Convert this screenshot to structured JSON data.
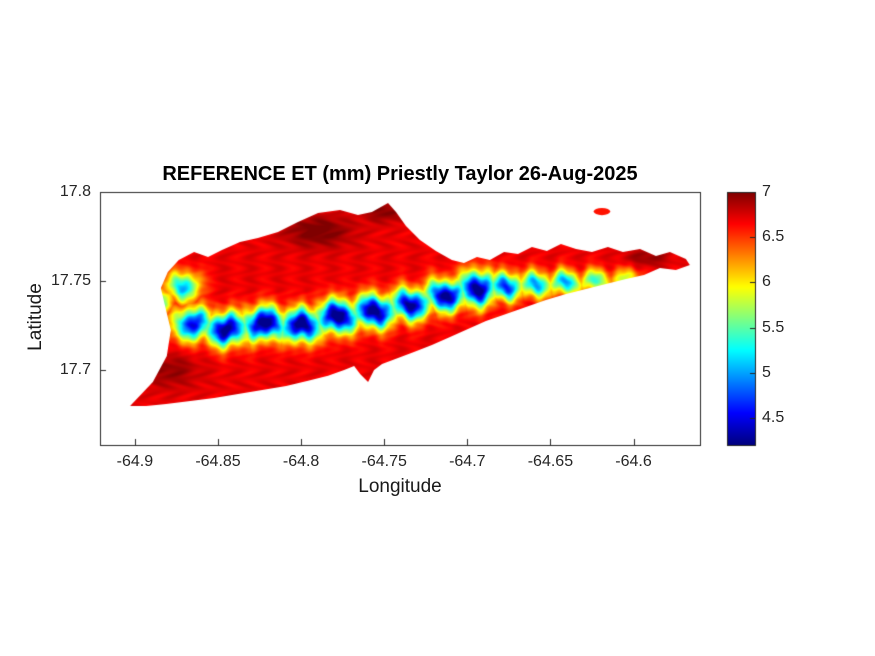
{
  "colors": {
    "background": "#ffffff",
    "axes": "#262626",
    "title_text": "#000000",
    "label_text": "#1a1a1a"
  },
  "chart_data": {
    "type": "heatmap",
    "title": "REFERENCE ET (mm) Priestly Taylor 26-Aug-2025",
    "xlabel": "Longitude",
    "ylabel": "Latitude",
    "date": "26-Aug-2025",
    "units": "mm",
    "colormap": "jet",
    "grid": false,
    "xlim": [
      -64.921,
      -64.56
    ],
    "ylim": [
      17.658,
      17.8
    ],
    "xticks": [
      -64.9,
      -64.85,
      -64.8,
      -64.75,
      -64.7,
      -64.65,
      -64.6
    ],
    "yticks": [
      17.8,
      17.75,
      17.7
    ],
    "clim": [
      4.2,
      7
    ],
    "colorbar_ticks": [
      7,
      6.5,
      6,
      5.5,
      5,
      4.5
    ],
    "base_value": 6.7,
    "island_outline": [
      [
        -64.9029,
        17.6799
      ],
      [
        -64.8892,
        17.6934
      ],
      [
        -64.8808,
        17.708
      ],
      [
        -64.8784,
        17.7225
      ],
      [
        -64.882,
        17.7366
      ],
      [
        -64.8844,
        17.7461
      ],
      [
        -64.8802,
        17.7551
      ],
      [
        -64.8736,
        17.7618
      ],
      [
        -64.8644,
        17.7663
      ],
      [
        -64.856,
        17.7635
      ],
      [
        -64.8476,
        17.7674
      ],
      [
        -64.8368,
        17.7719
      ],
      [
        -64.826,
        17.7742
      ],
      [
        -64.8139,
        17.7776
      ],
      [
        -64.8019,
        17.7832
      ],
      [
        -64.7898,
        17.7882
      ],
      [
        -64.7766,
        17.7899
      ],
      [
        -64.7658,
        17.7871
      ],
      [
        -64.7574,
        17.7888
      ],
      [
        -64.7477,
        17.7938
      ],
      [
        -64.7429,
        17.7888
      ],
      [
        -64.7369,
        17.7809
      ],
      [
        -64.7285,
        17.7731
      ],
      [
        -64.7189,
        17.7669
      ],
      [
        -64.7093,
        17.7618
      ],
      [
        -64.702,
        17.7601
      ],
      [
        -64.6942,
        17.7635
      ],
      [
        -64.6864,
        17.7618
      ],
      [
        -64.6779,
        17.7663
      ],
      [
        -64.6695,
        17.7652
      ],
      [
        -64.6611,
        17.7691
      ],
      [
        -64.6521,
        17.7669
      ],
      [
        -64.6437,
        17.7708
      ],
      [
        -64.6346,
        17.768
      ],
      [
        -64.625,
        17.7663
      ],
      [
        -64.6154,
        17.7691
      ],
      [
        -64.6064,
        17.7663
      ],
      [
        -64.5961,
        17.768
      ],
      [
        -64.5865,
        17.7641
      ],
      [
        -64.5781,
        17.7663
      ],
      [
        -64.5685,
        17.7624
      ],
      [
        -64.5661,
        17.759
      ],
      [
        -64.5745,
        17.7562
      ],
      [
        -64.5841,
        17.7573
      ],
      [
        -64.5937,
        17.7534
      ],
      [
        -64.6045,
        17.7512
      ],
      [
        -64.6166,
        17.7484
      ],
      [
        -64.6286,
        17.7456
      ],
      [
        -64.6406,
        17.7427
      ],
      [
        -64.6527,
        17.7394
      ],
      [
        -64.6647,
        17.7355
      ],
      [
        -64.6767,
        17.7315
      ],
      [
        -64.6888,
        17.7276
      ],
      [
        -64.6996,
        17.7231
      ],
      [
        -64.7104,
        17.7186
      ],
      [
        -64.7213,
        17.7141
      ],
      [
        -64.7321,
        17.7102
      ],
      [
        -64.7417,
        17.7068
      ],
      [
        -64.7513,
        17.7035
      ],
      [
        -64.7561,
        17.7001
      ],
      [
        -64.7597,
        17.6934
      ],
      [
        -64.7645,
        17.6979
      ],
      [
        -64.7681,
        17.7024
      ],
      [
        -64.7741,
        17.7001
      ],
      [
        -64.7838,
        17.6968
      ],
      [
        -64.7958,
        17.694
      ],
      [
        -64.809,
        17.6911
      ],
      [
        -64.8234,
        17.6889
      ],
      [
        -64.8379,
        17.6866
      ],
      [
        -64.8523,
        17.6844
      ],
      [
        -64.8667,
        17.6827
      ],
      [
        -64.8812,
        17.681
      ],
      [
        -64.8932,
        17.6799
      ]
    ],
    "offshore_islet": {
      "lon": -64.619,
      "lat": 17.789,
      "rx": 0.005,
      "ry": 0.002,
      "value": 6.6
    },
    "low_et_band": [
      {
        "lon": -64.865,
        "lat": 17.726,
        "sx": 0.012,
        "sy": 0.009,
        "depth": 2.2
      },
      {
        "lon": -64.845,
        "lat": 17.723,
        "sx": 0.013,
        "sy": 0.009,
        "depth": 2.55
      },
      {
        "lon": -64.822,
        "lat": 17.726,
        "sx": 0.013,
        "sy": 0.009,
        "depth": 2.65
      },
      {
        "lon": -64.8,
        "lat": 17.725,
        "sx": 0.013,
        "sy": 0.009,
        "depth": 2.6
      },
      {
        "lon": -64.778,
        "lat": 17.73,
        "sx": 0.013,
        "sy": 0.009,
        "depth": 2.65
      },
      {
        "lon": -64.756,
        "lat": 17.733,
        "sx": 0.013,
        "sy": 0.009,
        "depth": 2.6
      },
      {
        "lon": -64.734,
        "lat": 17.737,
        "sx": 0.012,
        "sy": 0.0085,
        "depth": 2.5
      },
      {
        "lon": -64.713,
        "lat": 17.742,
        "sx": 0.012,
        "sy": 0.0085,
        "depth": 2.55
      },
      {
        "lon": -64.694,
        "lat": 17.746,
        "sx": 0.011,
        "sy": 0.0095,
        "depth": 2.6
      },
      {
        "lon": -64.677,
        "lat": 17.747,
        "sx": 0.01,
        "sy": 0.0075,
        "depth": 2.1
      },
      {
        "lon": -64.659,
        "lat": 17.748,
        "sx": 0.01,
        "sy": 0.007,
        "depth": 1.75
      },
      {
        "lon": -64.641,
        "lat": 17.749,
        "sx": 0.01,
        "sy": 0.0065,
        "depth": 1.7
      },
      {
        "lon": -64.623,
        "lat": 17.75,
        "sx": 0.01,
        "sy": 0.006,
        "depth": 1.3
      },
      {
        "lon": -64.605,
        "lat": 17.751,
        "sx": 0.01,
        "sy": 0.0055,
        "depth": 0.9
      },
      {
        "lon": -64.871,
        "lat": 17.747,
        "sx": 0.01,
        "sy": 0.008,
        "depth": 1.65
      },
      {
        "lon": -64.884,
        "lat": 17.738,
        "sx": 0.007,
        "sy": 0.007,
        "depth": 1.2
      }
    ],
    "high_et_spots": [
      {
        "lon": -64.79,
        "lat": 17.778,
        "sx": 0.02,
        "sy": 0.009,
        "amp": 0.35
      },
      {
        "lon": -64.75,
        "lat": 17.789,
        "sx": 0.012,
        "sy": 0.006,
        "amp": 0.3
      },
      {
        "lon": -64.88,
        "lat": 17.7,
        "sx": 0.018,
        "sy": 0.01,
        "amp": 0.25
      },
      {
        "lon": -64.592,
        "lat": 17.763,
        "sx": 0.013,
        "sy": 0.005,
        "amp": 0.25
      }
    ]
  }
}
